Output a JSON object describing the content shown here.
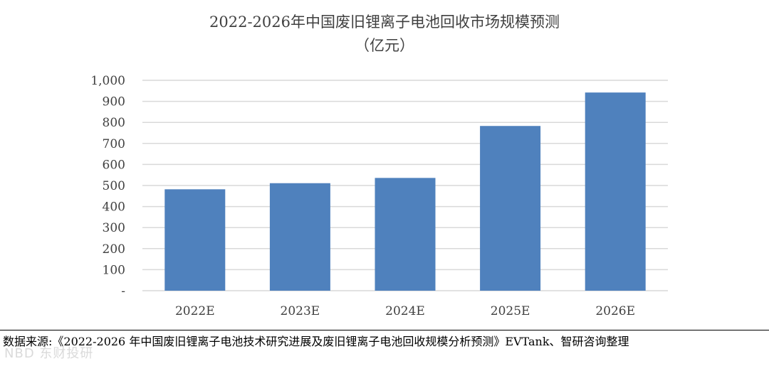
{
  "chart_data": {
    "type": "bar",
    "title": "2022-2026年中国废旧锂离子电池回收市场规模预测",
    "subtitle": "（亿元）",
    "categories": [
      "2022E",
      "2023E",
      "2024E",
      "2025E",
      "2026E"
    ],
    "values": [
      482,
      511,
      536,
      783,
      942
    ],
    "ylim": [
      0,
      1000
    ],
    "yticks": [
      0,
      100,
      200,
      300,
      400,
      500,
      600,
      700,
      800,
      900,
      1000
    ],
    "ytick_labels": [
      "-",
      "100",
      "200",
      "300",
      "400",
      "500",
      "600",
      "700",
      "800",
      "900",
      "1,000"
    ],
    "xlabel": "",
    "ylabel": "",
    "grid": true,
    "bar_color": "#4f81bd",
    "grid_color": "#d9d9d9"
  },
  "source_text": "数据来源:《2022-2026 年中国废旧锂离子电池技术研究进展及废旧锂离子电池回收规模分析预测》EVTank、智研咨询整理",
  "watermark": "NBD 东财投研"
}
